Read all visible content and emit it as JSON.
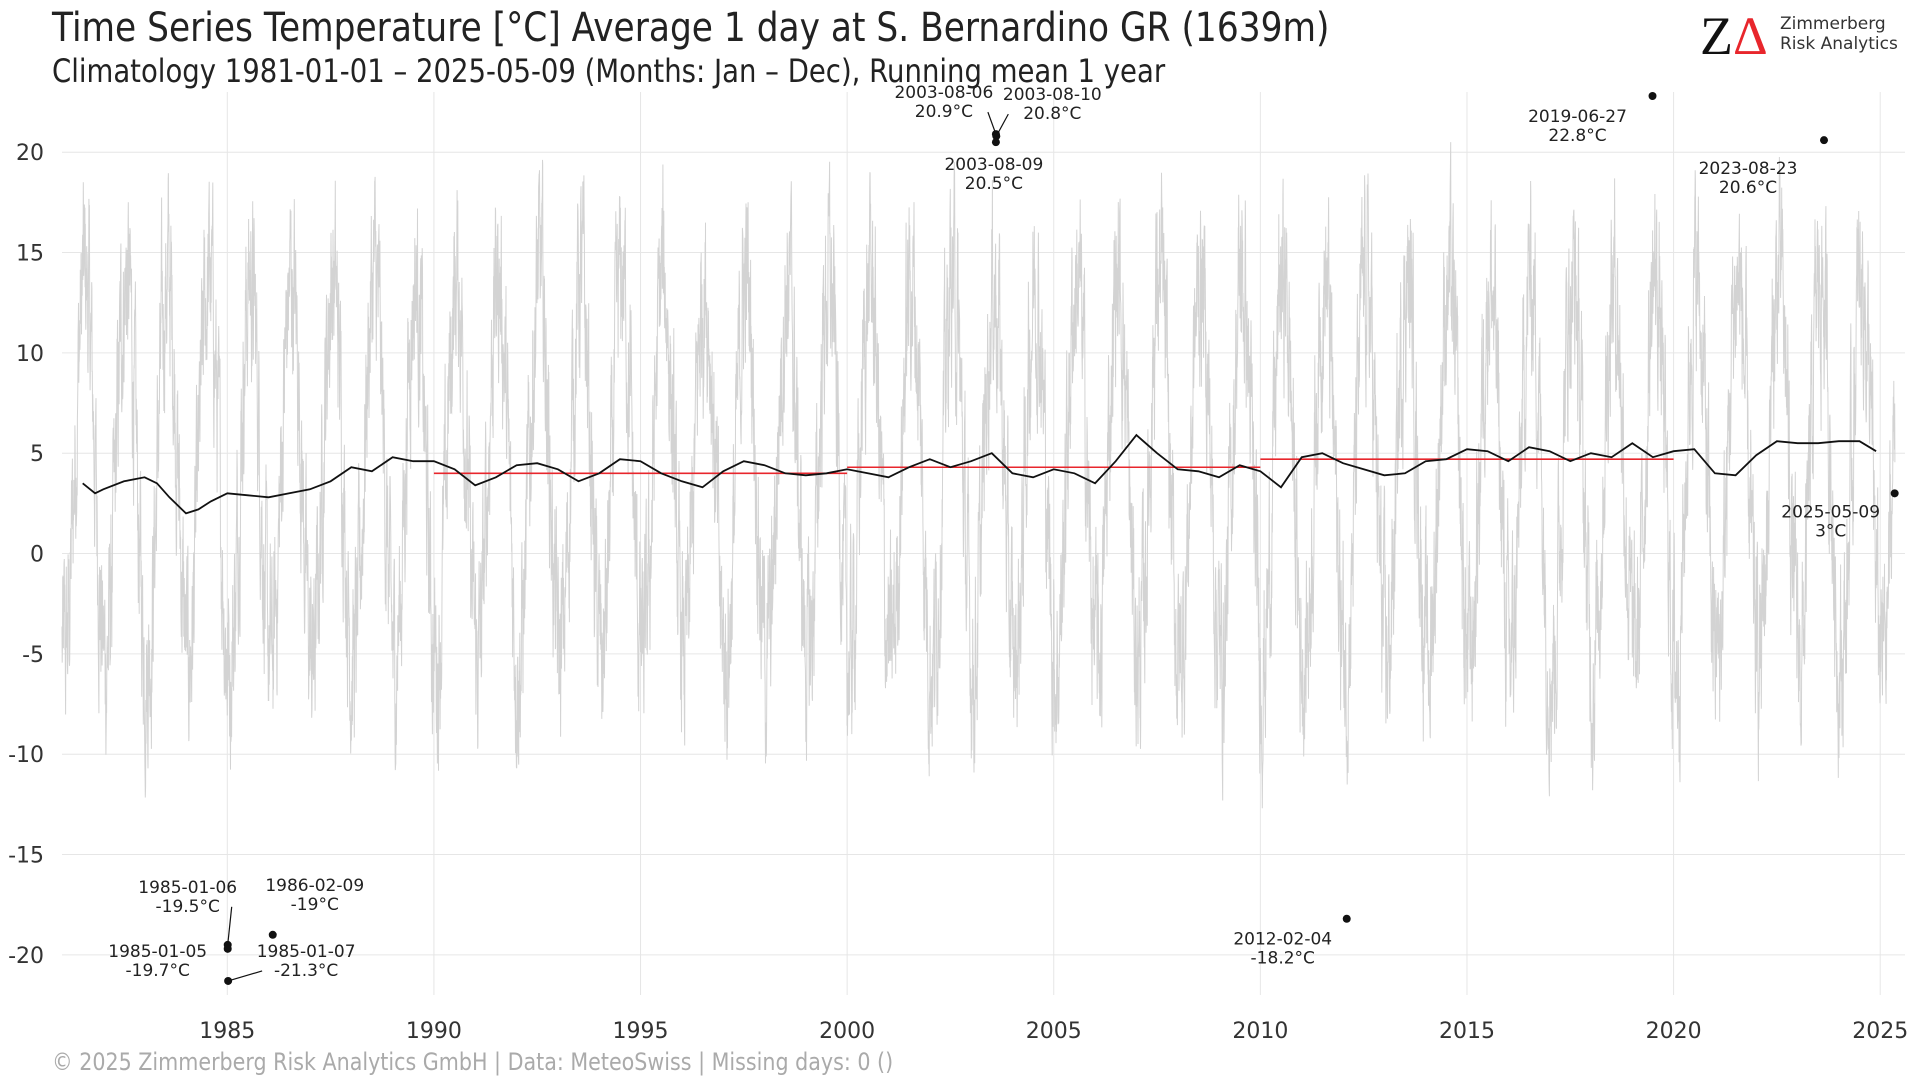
{
  "header": {
    "title": "Time Series Temperature [°C] Average 1 day at S. Bernardino  GR (1639m)",
    "subtitle": "Climatology 1981-01-01 – 2025-05-09 (Months: Jan – Dec), Running mean 1 year"
  },
  "logo": {
    "mark_z": "Z",
    "mark_delta": "Δ",
    "line1": "Zimmerberg",
    "line2": "Risk Analytics"
  },
  "footer": {
    "text": "©  2025 Zimmerberg Risk Analytics GmbH | Data: MeteoSwiss | Missing days: 0 ()"
  },
  "colors": {
    "daily_series": "#d3d3d3",
    "running_mean": "#111111",
    "decade_mean": "#e8262c",
    "grid": "#e6e6e6"
  },
  "chart_data": {
    "type": "line",
    "title": "Time Series Temperature [°C] Average 1 day at S. Bernardino  GR (1639m)",
    "subtitle": "Climatology 1981-01-01 – 2025-05-09 (Months: Jan – Dec), Running mean 1 year",
    "xlim": [
      1981.0,
      2025.6
    ],
    "ylim": [
      -22.0,
      23.0
    ],
    "x_ticks": [
      1985,
      1990,
      1995,
      2000,
      2005,
      2010,
      2015,
      2020,
      2025
    ],
    "y_ticks": [
      -20,
      -15,
      -10,
      -5,
      0,
      5,
      10,
      15,
      20
    ],
    "grid": true,
    "series": [
      {
        "role": "daily",
        "x_start": 1981.0,
        "x_end": 2025.36,
        "seasonal_amplitude": 9.5,
        "mean": 4.2
      },
      {
        "role": "running_mean_1y",
        "x": [
          1981.5,
          1981.8,
          1982.0,
          1982.5,
          1983.0,
          1983.3,
          1983.6,
          1984.0,
          1984.3,
          1984.6,
          1985.0,
          1985.5,
          1986.0,
          1986.5,
          1987.0,
          1987.5,
          1988.0,
          1988.5,
          1989.0,
          1989.5,
          1990.0,
          1990.5,
          1991.0,
          1991.5,
          1992.0,
          1992.5,
          1993.0,
          1993.5,
          1994.0,
          1994.5,
          1995.0,
          1995.5,
          1996.0,
          1996.5,
          1997.0,
          1997.5,
          1998.0,
          1998.5,
          1999.0,
          1999.5,
          2000.0,
          2000.5,
          2001.0,
          2001.5,
          2002.0,
          2002.5,
          2003.0,
          2003.5,
          2004.0,
          2004.5,
          2005.0,
          2005.5,
          2006.0,
          2006.5,
          2007.0,
          2007.5,
          2008.0,
          2008.5,
          2009.0,
          2009.5,
          2010.0,
          2010.5,
          2011.0,
          2011.5,
          2012.0,
          2012.5,
          2013.0,
          2013.5,
          2014.0,
          2014.5,
          2015.0,
          2015.5,
          2016.0,
          2016.5,
          2017.0,
          2017.5,
          2018.0,
          2018.5,
          2019.0,
          2019.5,
          2020.0,
          2020.5,
          2021.0,
          2021.5,
          2022.0,
          2022.5,
          2023.0,
          2023.5,
          2024.0,
          2024.5,
          2024.9
        ],
        "y": [
          3.5,
          3.0,
          3.2,
          3.6,
          3.8,
          3.5,
          2.8,
          2.0,
          2.2,
          2.6,
          3.0,
          2.9,
          2.8,
          3.0,
          3.2,
          3.6,
          4.3,
          4.1,
          4.8,
          4.6,
          4.6,
          4.2,
          3.4,
          3.8,
          4.4,
          4.5,
          4.2,
          3.6,
          4.0,
          4.7,
          4.6,
          4.0,
          3.6,
          3.3,
          4.1,
          4.6,
          4.4,
          4.0,
          3.9,
          4.0,
          4.2,
          4.0,
          3.8,
          4.3,
          4.7,
          4.3,
          4.6,
          5.0,
          4.0,
          3.8,
          4.2,
          4.0,
          3.5,
          4.6,
          5.9,
          5.0,
          4.2,
          4.1,
          3.8,
          4.4,
          4.1,
          3.3,
          4.8,
          5.0,
          4.5,
          4.2,
          3.9,
          4.0,
          4.6,
          4.7,
          5.2,
          5.1,
          4.6,
          5.3,
          5.1,
          4.6,
          5.0,
          4.8,
          5.5,
          4.8,
          5.1,
          5.2,
          4.0,
          3.9,
          4.9,
          5.6,
          5.5,
          5.5,
          5.6,
          5.6,
          5.1
        ]
      },
      {
        "role": "decade_mean",
        "segments": [
          {
            "x": [
              1990,
              2000
            ],
            "y": 4.0
          },
          {
            "x": [
              2000,
              2010
            ],
            "y": 4.3
          },
          {
            "x": [
              2010,
              2020
            ],
            "y": 4.7
          }
        ]
      }
    ],
    "annotations": [
      {
        "label": "2003-08-06",
        "value": "20.9°C",
        "x": 2003.6,
        "y": 20.9
      },
      {
        "label": "2003-08-10",
        "value": "20.8°C",
        "x": 2003.61,
        "y": 20.8
      },
      {
        "label": "2003-08-09",
        "value": "20.5°C",
        "x": 2003.6,
        "y": 20.5
      },
      {
        "label": "2019-06-27",
        "value": "22.8°C",
        "x": 2019.49,
        "y": 22.8
      },
      {
        "label": "2023-08-23",
        "value": "20.6°C",
        "x": 2023.64,
        "y": 20.6
      },
      {
        "label": "2025-05-09",
        "value": "3°C",
        "x": 2025.35,
        "y": 3.0
      },
      {
        "label": "1985-01-06",
        "value": "-19.5°C",
        "x": 1985.01,
        "y": -19.5
      },
      {
        "label": "1986-02-09",
        "value": "-19°C",
        "x": 1986.1,
        "y": -19.0
      },
      {
        "label": "1985-01-05",
        "value": "-19.7°C",
        "x": 1985.01,
        "y": -19.7
      },
      {
        "label": "1985-01-07",
        "value": "-21.3°C",
        "x": 1985.02,
        "y": -21.3
      },
      {
        "label": "2012-02-04",
        "value": "-18.2°C",
        "x": 2012.09,
        "y": -18.2
      }
    ]
  }
}
